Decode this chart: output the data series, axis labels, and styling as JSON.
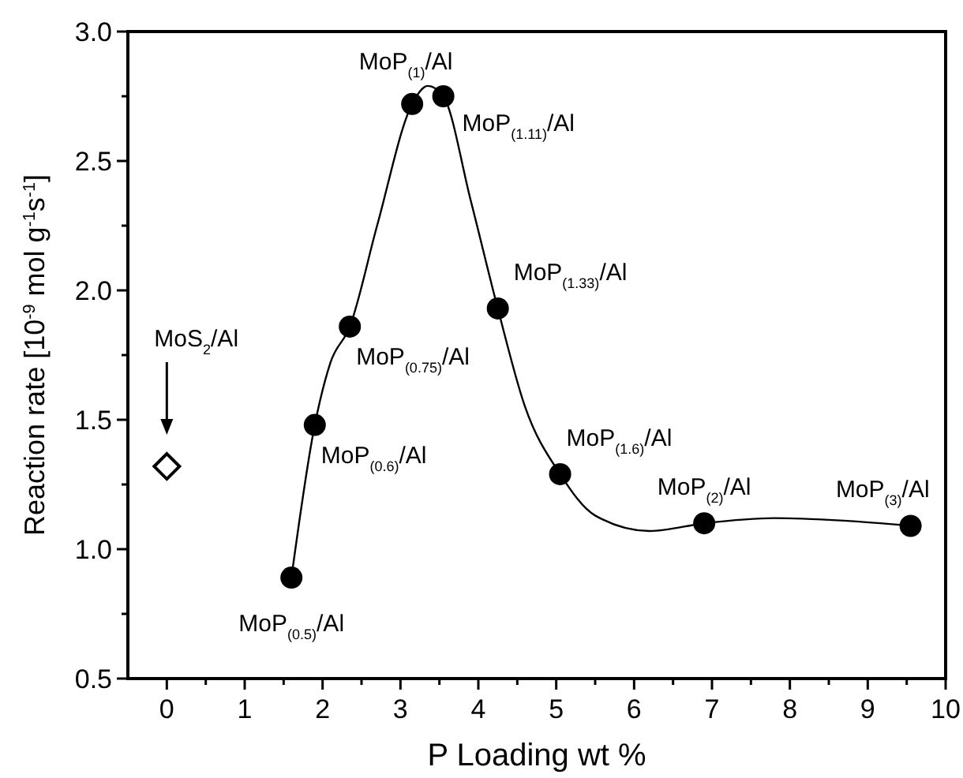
{
  "chart_data": {
    "type": "scatter",
    "xlabel": "P Loading wt %",
    "ylabel": "Reaction rate [10$^{-9}$ mol g$^{-1}$s$^{-1}$]",
    "xlim": [
      -0.5,
      10
    ],
    "ylim": [
      0.5,
      3.0
    ],
    "xticks": [
      0,
      {
        "value": 0.5,
        "label": null
      },
      1,
      {
        "value": 1.5,
        "label": null
      },
      2,
      {
        "value": 2.5,
        "label": null
      },
      3,
      {
        "value": 3.5,
        "label": null
      },
      4,
      {
        "value": 4.5,
        "label": null
      },
      5,
      {
        "value": 5.5,
        "label": null
      },
      6,
      {
        "value": 6.5,
        "label": null
      },
      7,
      {
        "value": 7.5,
        "label": null
      },
      8,
      {
        "value": 8.5,
        "label": null
      },
      9,
      {
        "value": 9.5,
        "label": null
      },
      10
    ],
    "yticks": [
      {
        "value": 0.5,
        "label": "0.5"
      },
      {
        "value": 0.75,
        "label": null
      },
      {
        "value": 1,
        "label": "1.0"
      },
      {
        "value": 1.25,
        "label": null
      },
      {
        "value": 1.5,
        "label": "1.5"
      },
      {
        "value": 1.75,
        "label": null
      },
      {
        "value": 2,
        "label": "2.0"
      },
      {
        "value": 2.25,
        "label": null
      },
      {
        "value": 2.5,
        "label": "2.5"
      },
      {
        "value": 2.75,
        "label": null
      },
      {
        "value": 3,
        "label": "3.0"
      }
    ],
    "grid": false,
    "series": [
      {
        "type": "line",
        "color": "#000000",
        "marker": "none",
        "line_style": "solid",
        "x": [
          1.6,
          1.9,
          2.1,
          2.35,
          2.7,
          3.15,
          3.35,
          3.55,
          3.9,
          4.25,
          4.6,
          5.05,
          5.5,
          6.2,
          6.9,
          7.8,
          8.7,
          9.55
        ],
        "values": [
          0.89,
          1.48,
          1.72,
          1.86,
          2.25,
          2.72,
          2.79,
          2.75,
          2.35,
          1.93,
          1.55,
          1.29,
          1.13,
          1.07,
          1.1,
          1.12,
          1.11,
          1.09
        ]
      },
      {
        "color": "#000000",
        "marker": "circle",
        "x": [
          1.6,
          1.9,
          2.35,
          3.15,
          3.55,
          4.25,
          5.05,
          6.9,
          9.55
        ],
        "values": [
          0.89,
          1.48,
          1.86,
          2.72,
          2.75,
          1.93,
          1.29,
          1.1,
          1.09
        ]
      },
      {
        "color": "#000000",
        "marker": "diamond",
        "x": [
          0
        ],
        "values": [
          1.32
        ]
      }
    ],
    "annotations": [
      {
        "text": "MoP$_{(0.5)}$/Al",
        "x": 1.6,
        "y": 0.89
      },
      {
        "text": "MoP$_{(0.6)}$/Al",
        "x": 1.9,
        "y": 1.48
      },
      {
        "text": "MoP$_{(0.75)}$/Al",
        "x": 2.35,
        "y": 1.86
      },
      {
        "text": "MoP$_{(1)}$/Al",
        "x": 3.15,
        "y": 2.72
      },
      {
        "text": "MoP$_{(1.11)}$/Al",
        "x": 3.55,
        "y": 2.75
      },
      {
        "text": "MoP$_{(1.33)}$/Al",
        "x": 4.25,
        "y": 1.93
      },
      {
        "text": "MoP$_{(1.6)}$/Al",
        "x": 5.05,
        "y": 1.29
      },
      {
        "text": "MoP$_{(2)}$/Al",
        "x": 6.9,
        "y": 1.1
      },
      {
        "text": "MoP$_{(3)}$/Al",
        "x": 9.55,
        "y": 1.09
      },
      "MoS$_{2}$/Al"
    ]
  }
}
